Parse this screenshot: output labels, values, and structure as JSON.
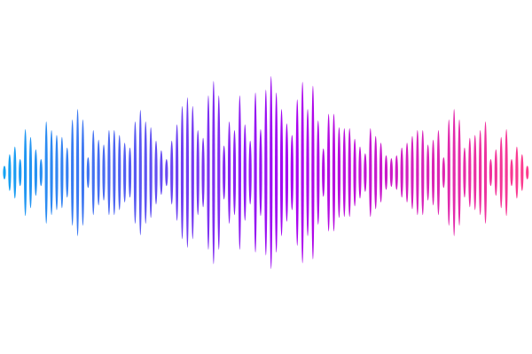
{
  "waveform": {
    "colors": {
      "start": "#12a5f2",
      "middle": "#a800f2",
      "end": "#ff3d8a"
    },
    "levels": [
      7,
      19,
      27,
      14,
      45,
      37,
      24,
      14,
      53,
      44,
      39,
      37,
      26,
      55,
      66,
      55,
      16,
      44,
      34,
      29,
      44,
      44,
      39,
      31,
      26,
      53,
      65,
      53,
      47,
      33,
      23,
      14,
      33,
      50,
      69,
      78,
      69,
      44,
      36,
      80,
      95,
      80,
      28,
      53,
      44,
      80,
      50,
      33,
      83,
      45,
      86,
      100,
      83,
      66,
      51,
      39,
      76,
      94,
      66,
      90,
      54,
      25,
      61,
      61,
      47,
      46,
      46,
      35,
      27,
      20,
      46,
      38,
      31,
      18,
      15,
      18,
      26,
      31,
      38,
      44,
      44,
      29,
      34,
      44,
      16,
      55,
      66,
      55,
      26,
      36,
      39,
      44,
      53,
      14,
      24,
      37,
      45,
      14,
      27,
      19,
      7
    ]
  }
}
